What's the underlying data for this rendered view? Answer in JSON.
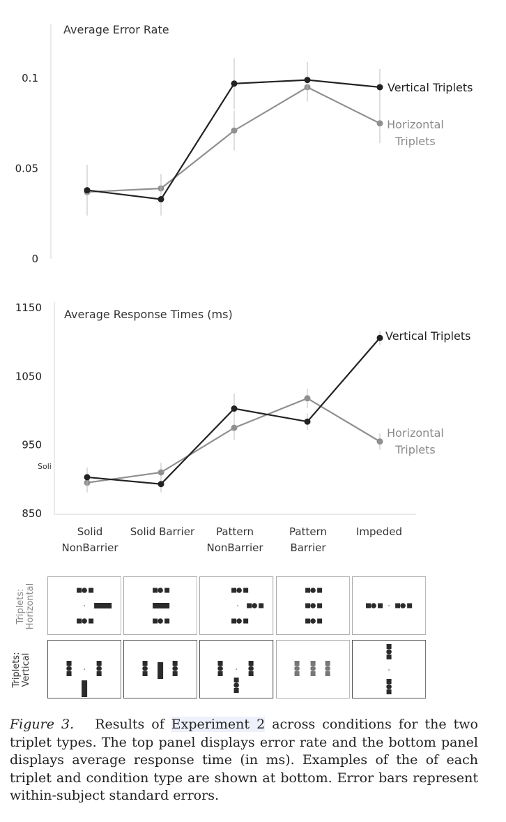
{
  "chart_data": [
    {
      "type": "line",
      "title": "Average Error Rate",
      "categories": [
        "Solid\nNonBarrier",
        "Solid Barrier",
        "Pattern\nNonBarrier",
        "Pattern\nBarrier",
        "Impeded"
      ],
      "yticks": [
        "0",
        "0.05",
        "0.1"
      ],
      "ylim": [
        0,
        0.1
      ],
      "series": [
        {
          "name": "Vertical Triplets",
          "color": "#222222",
          "values": [
            0.038,
            0.033,
            0.097,
            0.099,
            0.095
          ],
          "errors": [
            0.014,
            0.009,
            0.014,
            0.01,
            0.01
          ]
        },
        {
          "name": "Horizontal\nTriplets",
          "color": "#909090",
          "values": [
            0.037,
            0.039,
            0.071,
            0.095,
            0.075
          ],
          "errors": [
            0.011,
            0.008,
            0.011,
            0.008,
            0.011
          ]
        }
      ]
    },
    {
      "type": "line",
      "title": "Average Response Times (ms)",
      "categories": [
        "Solid\nNonBarrier",
        "Solid Barrier",
        "Pattern\nNonBarrier",
        "Pattern\nBarrier",
        "Impeded"
      ],
      "yticks": [
        "850",
        "950",
        "1050",
        "1150"
      ],
      "ylim": [
        850,
        1150
      ],
      "series": [
        {
          "name": "Vertical Triplets",
          "color": "#222222",
          "values": [
            903,
            893,
            1003,
            984,
            1106
          ],
          "errors": [
            14,
            12,
            22,
            12,
            10
          ]
        },
        {
          "name": "Horizontal\nTriplets",
          "color": "#909090",
          "values": [
            895,
            910,
            975,
            1018,
            955
          ],
          "errors": [
            14,
            14,
            18,
            14,
            12
          ]
        }
      ],
      "annotations": [
        "Soli"
      ]
    }
  ],
  "stimuli": {
    "row_labels": [
      "Triplets:\nHorizontal",
      "Triplets:\nVertical"
    ]
  },
  "caption": {
    "label": "Figure 3.",
    "before_link": "Results of ",
    "link": "Experiment 2",
    "after_link": " across conditions for the two triplet types. The top panel displays error rate and the bottom panel displays average response time (in ms). Examples of the of each triplet and condition type are shown at bottom. Error bars represent within-subject standard errors."
  }
}
